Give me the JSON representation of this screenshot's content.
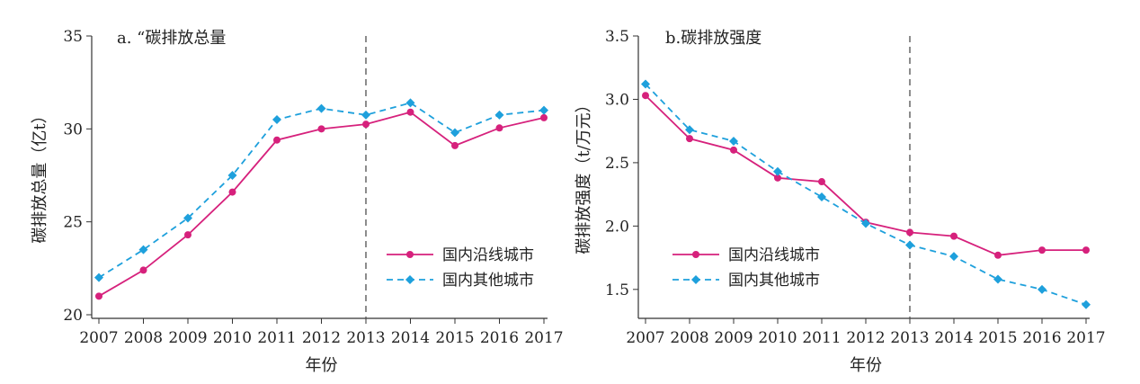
{
  "colors": {
    "coastal": "#d6217c",
    "other": "#1ea0dc"
  },
  "chart_data": [
    {
      "type": "line",
      "title": "a. “碳排放总量",
      "xlabel": "年份",
      "ylabel": "碳排放总量（亿t）",
      "x": [
        "2007",
        "2008",
        "2009",
        "2010",
        "2011",
        "2012",
        "2013",
        "2014",
        "2015",
        "2016",
        "2017"
      ],
      "ylim": [
        20,
        35
      ],
      "yticks": [
        20,
        25,
        30,
        35
      ],
      "reference_line_x": "2013",
      "legend_position": "lower-right",
      "series": [
        {
          "name": "国内沿线城市",
          "marker": "circle",
          "line": "solid",
          "values": [
            21.0,
            22.4,
            24.3,
            26.6,
            29.4,
            30.0,
            30.25,
            30.9,
            29.1,
            30.05,
            30.6
          ]
        },
        {
          "name": "国内其他城市",
          "marker": "diamond",
          "line": "dashed",
          "values": [
            22.0,
            23.5,
            25.2,
            27.5,
            30.5,
            31.1,
            30.75,
            31.4,
            29.8,
            30.75,
            31.0
          ]
        }
      ]
    },
    {
      "type": "line",
      "title": "b.碳排放强度",
      "xlabel": "年份",
      "ylabel": "碳排放强度（t/万元）",
      "x": [
        "2007",
        "2008",
        "2009",
        "2010",
        "2011",
        "2012",
        "2013",
        "2014",
        "2015",
        "2016",
        "2017"
      ],
      "ylim": [
        1.3,
        3.5
      ],
      "yticks": [
        1.5,
        2.0,
        2.5,
        3.0,
        3.5
      ],
      "yticklabels": [
        "1.5",
        "2.0",
        "2.5",
        "3.0",
        "3.5"
      ],
      "reference_line_x": "2013",
      "legend_position": "lower-left",
      "series": [
        {
          "name": "国内沿线城市",
          "marker": "circle",
          "line": "solid",
          "values": [
            3.03,
            2.69,
            2.6,
            2.38,
            2.35,
            2.03,
            1.95,
            1.92,
            1.77,
            1.81,
            1.81
          ]
        },
        {
          "name": "国内其他城市",
          "marker": "diamond",
          "line": "dashed",
          "values": [
            3.12,
            2.76,
            2.67,
            2.43,
            2.23,
            2.02,
            1.85,
            1.76,
            1.58,
            1.5,
            1.38
          ]
        }
      ]
    }
  ]
}
